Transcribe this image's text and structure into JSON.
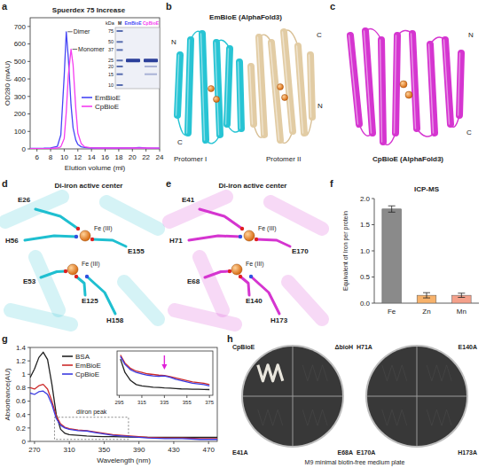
{
  "chart_data": [
    {
      "type": "line",
      "title": "Spuerdex 75 Increase",
      "x_label": "Elution volume (ml)",
      "y_label": "OD280 (mAU)",
      "x": [
        5,
        6,
        7,
        8,
        9,
        9.5,
        10,
        10.3,
        10.6,
        11,
        11.3,
        11.7,
        12,
        12.5,
        13,
        14,
        15,
        16,
        18,
        20,
        21,
        22,
        24
      ],
      "series": [
        {
          "name": "EmBioE",
          "color": "#4646f5",
          "values": [
            3,
            3,
            4,
            6,
            15,
            80,
            420,
            670,
            520,
            250,
            120,
            50,
            25,
            12,
            8,
            5,
            5,
            5,
            5,
            6,
            8,
            6,
            4
          ]
        },
        {
          "name": "CpBioE",
          "color": "#f53cf0",
          "values": [
            2,
            2,
            2,
            3,
            5,
            12,
            60,
            210,
            420,
            570,
            480,
            230,
            90,
            30,
            12,
            6,
            5,
            5,
            5,
            5,
            6,
            5,
            4
          ]
        }
      ],
      "xlim": [
        5,
        24
      ],
      "ylim": [
        0,
        750
      ],
      "xticks": [
        6,
        8,
        10,
        12,
        14,
        16,
        18,
        20,
        22,
        24
      ],
      "yticks": [
        0,
        100,
        200,
        300,
        400,
        500,
        600,
        700
      ],
      "legend": "center",
      "annotations": [
        "Dimer",
        "Monomer"
      ]
    },
    {
      "type": "bar",
      "title": "ICP-MS",
      "y_label": "Equivalent of Iron per protein",
      "categories": [
        "Fe",
        "Zn",
        "Mn"
      ],
      "values": [
        1.8,
        0.15,
        0.15
      ],
      "errors": [
        0.06,
        0.05,
        0.04
      ],
      "colors": [
        "#8a8a8a",
        "#f7b26b",
        "#f4a08a"
      ],
      "ylim": [
        0,
        2
      ],
      "yticks": [
        {
          "value": 0,
          "label": "0.0"
        },
        0.5,
        {
          "value": 1,
          "label": "1.0"
        },
        1.5,
        {
          "value": 2,
          "label": "2.0"
        }
      ]
    },
    {
      "type": "line",
      "x_label": "Wavelength (nm)",
      "y_label": "Absorbance(AU)",
      "x": [
        265,
        270,
        275,
        280,
        285,
        290,
        295,
        300,
        305,
        310,
        320,
        330,
        340,
        350,
        360,
        380,
        400,
        420,
        440,
        460,
        480
      ],
      "series": [
        {
          "name": "BSA",
          "color": "#222222",
          "values": [
            0.95,
            1.08,
            1.25,
            1.33,
            1.22,
            0.85,
            0.4,
            0.18,
            0.12,
            0.1,
            0.09,
            0.08,
            0.075,
            0.07,
            0.07,
            0.065,
            0.06,
            0.06,
            0.06,
            0.06,
            0.06
          ]
        },
        {
          "name": "EmBioE",
          "color": "#cc2a2a",
          "values": [
            0.8,
            0.78,
            0.83,
            0.85,
            0.78,
            0.6,
            0.38,
            0.26,
            0.21,
            0.19,
            0.17,
            0.16,
            0.14,
            0.12,
            0.1,
            0.08,
            0.06,
            0.05,
            0.05,
            0.04,
            0.04
          ]
        },
        {
          "name": "CpBioE",
          "color": "#3a3ae0",
          "values": [
            0.72,
            0.7,
            0.74,
            0.75,
            0.7,
            0.55,
            0.34,
            0.24,
            0.2,
            0.18,
            0.16,
            0.155,
            0.13,
            0.11,
            0.09,
            0.07,
            0.05,
            0.04,
            0.04,
            0.03,
            0.03
          ]
        }
      ],
      "xlim": [
        265,
        480
      ],
      "ylim": [
        0,
        1.4
      ],
      "xticks": [
        270,
        310,
        350,
        390,
        430,
        470
      ],
      "yticks": [
        0,
        0.2,
        0.4,
        0.6,
        0.8,
        1,
        1.2,
        1.4
      ],
      "legend": "upper left",
      "annotations": [
        "diiron peak"
      ]
    },
    {
      "type": "line",
      "x": [
        296,
        300,
        305,
        310,
        315,
        320,
        325,
        330,
        335,
        340,
        345,
        350,
        355,
        360,
        365,
        370,
        375
      ],
      "series": [
        {
          "color": "#222222",
          "values": [
            0.3,
            0.2,
            0.14,
            0.11,
            0.1,
            0.095,
            0.09,
            0.088,
            0.085,
            0.083,
            0.08,
            0.078,
            0.077,
            0.076,
            0.075,
            0.074,
            0.073
          ]
        },
        {
          "color": "#cc2a2a",
          "values": [
            0.33,
            0.27,
            0.23,
            0.21,
            0.2,
            0.19,
            0.185,
            0.18,
            0.178,
            0.17,
            0.16,
            0.15,
            0.14,
            0.13,
            0.125,
            0.12,
            0.11
          ]
        },
        {
          "color": "#3a3ae0",
          "values": [
            0.32,
            0.26,
            0.22,
            0.2,
            0.19,
            0.18,
            0.175,
            0.172,
            0.174,
            0.165,
            0.15,
            0.14,
            0.13,
            0.12,
            0.115,
            0.11,
            0.1
          ]
        }
      ],
      "xlim": [
        293,
        378
      ],
      "ylim": [
        0.03,
        0.36
      ],
      "xticks": [
        295,
        315,
        335,
        355,
        375
      ],
      "tick_labels": "x",
      "highlight": 335
    }
  ],
  "panels": {
    "letters": [
      "a",
      "b",
      "c",
      "d",
      "e",
      "f",
      "g",
      "h"
    ],
    "gel": {
      "unit": "kDa",
      "lanes": [
        "M",
        "EmBioE",
        "CpBioE"
      ],
      "markers": [
        75,
        50,
        37,
        25,
        20,
        15,
        10
      ]
    },
    "b": {
      "title": "EmBioE (AlphaFold3)",
      "protomers": [
        {
          "name": "Protomer I",
          "termini": [
            "N",
            "C"
          ]
        },
        {
          "name": "Protomer II",
          "termini": [
            "C",
            "N"
          ]
        }
      ]
    },
    "c": {
      "title": "CpBioE (AlphaFold3)",
      "termini": [
        "N",
        "C"
      ]
    },
    "d": {
      "title": "Di-iron active center",
      "residues": [
        "E26",
        "H56",
        "E53",
        "E155",
        "E125",
        "H158"
      ],
      "metal": "Fe (III)"
    },
    "e": {
      "title": "Di-iron active center",
      "residues": [
        "E41",
        "H71",
        "E68",
        "E170",
        "E140",
        "H173"
      ],
      "metal": "Fe (III)"
    },
    "h": {
      "plates": [
        {
          "quadrants": [
            "CpBioE",
            "ΔbioH",
            "E41A",
            "E68A"
          ],
          "growth": [
            true,
            false,
            false,
            false
          ]
        },
        {
          "quadrants": [
            "H71A",
            "E140A",
            "E170A",
            "H173A"
          ],
          "growth": [
            false,
            false,
            false,
            false
          ]
        }
      ],
      "caption": "M9 minimal biotin-free medium plate"
    }
  }
}
